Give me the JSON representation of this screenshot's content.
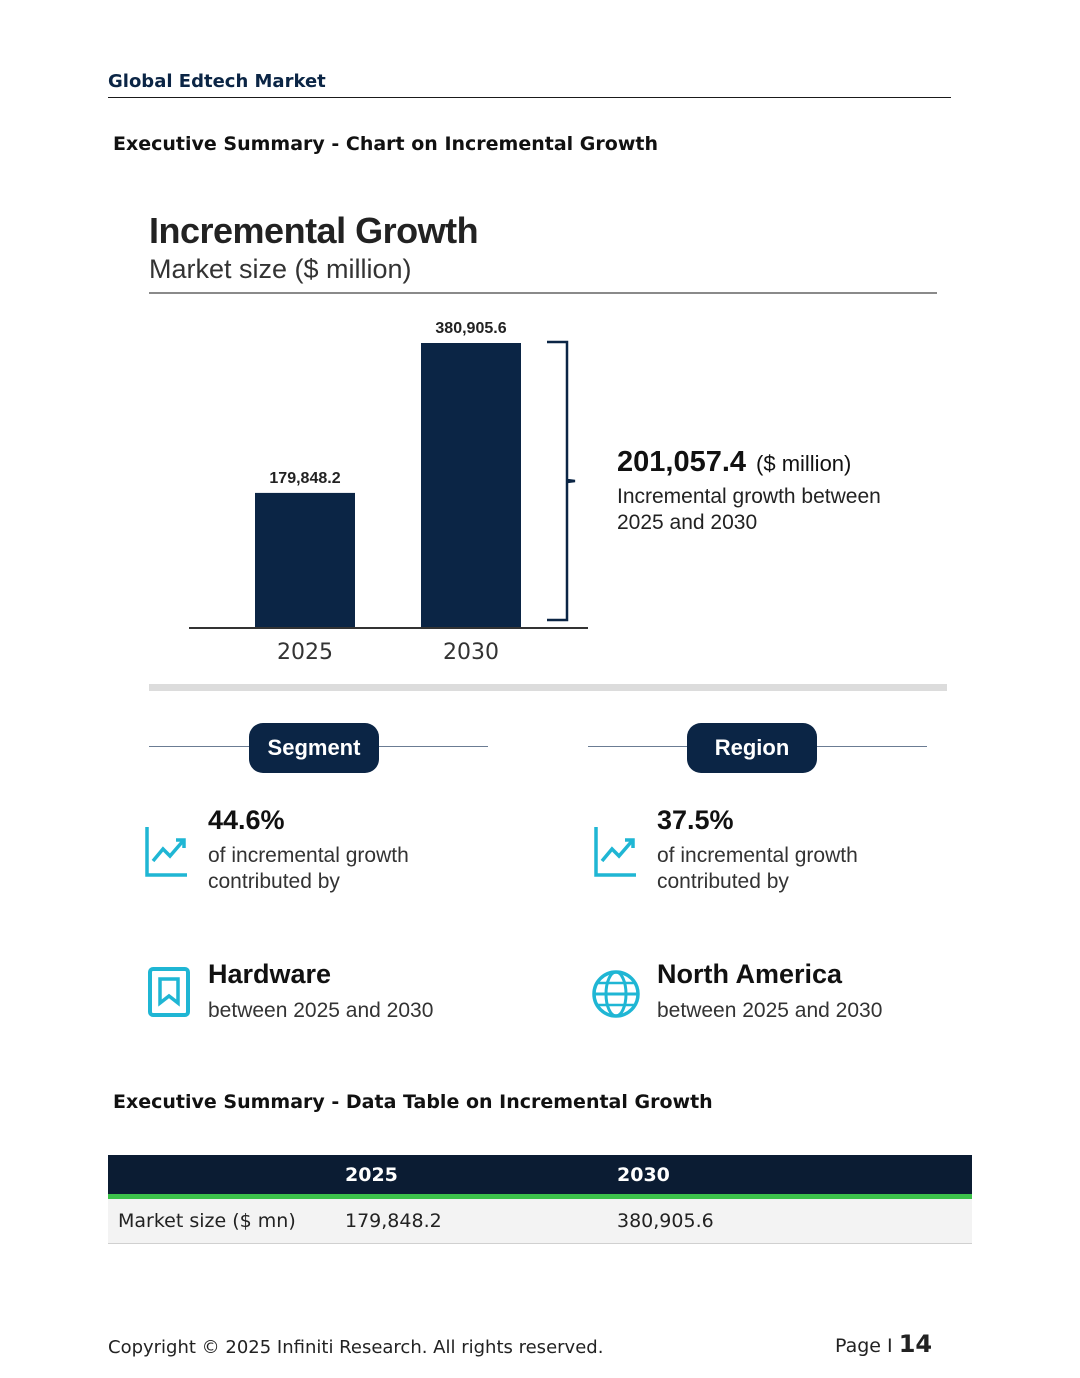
{
  "header": {
    "title": "Global Edtech Market"
  },
  "sections": {
    "chart_heading": "Executive Summary - Chart on Incremental Growth",
    "table_heading": "Executive Summary - Data Table on Incremental Growth"
  },
  "chart": {
    "title": "Incremental Growth",
    "subtitle": "Market size ($ million)",
    "growth_value": "201,057.4",
    "growth_unit": "($ million)",
    "growth_desc": "Incremental growth between 2025 and 2030"
  },
  "chart_data": {
    "type": "bar",
    "title": "Incremental Growth",
    "ylabel": "Market size ($ million)",
    "categories": [
      "2025",
      "2030"
    ],
    "values": [
      179848.2,
      380905.6
    ],
    "value_labels": [
      "179,848.2",
      "380,905.6"
    ],
    "ylim": [
      0,
      380905.6
    ],
    "annotation": "201,057.4 ($ million) Incremental growth between 2025 and 2030"
  },
  "segment": {
    "label": "Segment",
    "percent": "44.6%",
    "desc": "of incremental growth contributed by",
    "name": "Hardware",
    "period": "between 2025 and 2030"
  },
  "region": {
    "label": "Region",
    "percent": "37.5%",
    "desc": "of incremental growth contributed by",
    "name": "North America",
    "period": "between 2025 and 2030"
  },
  "table": {
    "headers": [
      "",
      "2025",
      "2030"
    ],
    "rows": [
      [
        "Market size ($ mn)",
        "179,848.2",
        "380,905.6"
      ]
    ]
  },
  "footer": {
    "copyright": "Copyright © 2025 Infiniti Research. All rights reserved.",
    "page_label": "Page I",
    "page_number": "14"
  },
  "colors": {
    "navy": "#0b2545",
    "accent": "#1fb6d4",
    "green": "#3cc24a"
  },
  "icons": [
    "trend-up-icon",
    "bookmark-icon",
    "globe-icon"
  ]
}
